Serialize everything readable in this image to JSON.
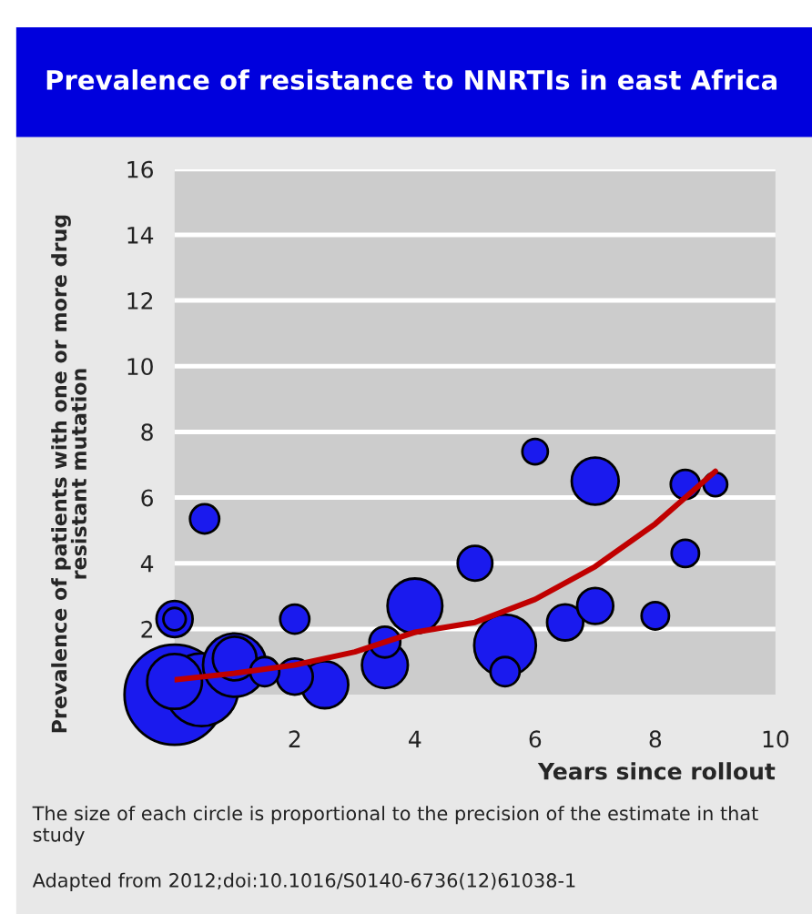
{
  "chart_data": {
    "type": "bubble",
    "title": "Prevalence of resistance to NNRTIs in east Africa",
    "xlabel": "Years since rollout",
    "ylabel": "Prevalence of patients with one or more drug\nresistant mutation",
    "xlim": [
      0,
      10
    ],
    "xticks": [
      2,
      4,
      6,
      8,
      10
    ],
    "ylim": [
      0,
      16
    ],
    "yticks": [
      2,
      4,
      6,
      8,
      10,
      12,
      14,
      16
    ],
    "grid": "y",
    "series": [
      {
        "type": "bubble",
        "color": "#1a1aee",
        "x": [
          0,
          0.45,
          1,
          5.5,
          0,
          4,
          2.5,
          7,
          3.5,
          1,
          0,
          2,
          6.5,
          7,
          5,
          3.5,
          2,
          1.5,
          5.5,
          8.5,
          0.5,
          8,
          8.5,
          6,
          9,
          0
        ],
        "values": [
          0,
          0.15,
          0.9,
          1.5,
          0.4,
          2.7,
          0.3,
          6.5,
          0.9,
          1.1,
          2.3,
          0.55,
          2.2,
          2.7,
          4.0,
          1.6,
          2.3,
          0.7,
          0.7,
          6.4,
          5.35,
          2.4,
          4.3,
          7.4,
          6.4,
          2.3
        ],
        "sizes": [
          1,
          0.53,
          0.4,
          0.38,
          0.3,
          0.3,
          0.22,
          0.22,
          0.21,
          0.19,
          0.13,
          0.13,
          0.13,
          0.13,
          0.12,
          0.095,
          0.085,
          0.085,
          0.085,
          0.085,
          0.085,
          0.075,
          0.075,
          0.065,
          0.056,
          0.05
        ]
      },
      {
        "type": "line",
        "color": "#c00000",
        "x": [
          0,
          1,
          2,
          3,
          4,
          5,
          6,
          7,
          8,
          9
        ],
        "values": [
          0.45,
          0.65,
          0.9,
          1.3,
          1.9,
          2.2,
          2.9,
          3.9,
          5.2,
          6.8
        ]
      }
    ],
    "annotations": [
      "The size of each circle is proportional to the precision of the estimate in that study",
      "Adapted from 2012;doi:10.1016/S0140-6736(12)61038-1"
    ]
  }
}
